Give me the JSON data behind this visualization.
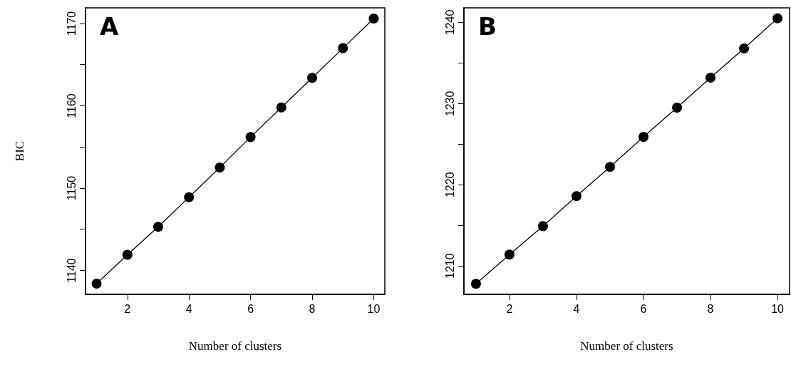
{
  "chart_data": [
    {
      "type": "line",
      "xlabel": "Number of clusters",
      "ylabel": "BIC",
      "annotations": [
        "A"
      ],
      "x": [
        1,
        2,
        3,
        4,
        5,
        6,
        7,
        8,
        9,
        10
      ],
      "series": [
        {
          "color": "#000000",
          "values": [
            1138.4,
            1141.9,
            1145.3,
            1148.9,
            1152.5,
            1156.2,
            1159.8,
            1163.4,
            1167.0,
            1170.6
          ]
        }
      ],
      "xlim": [
        0.64,
        10.36
      ],
      "xticks": [
        2,
        4,
        6,
        8,
        10
      ],
      "ylim": [
        1137.1,
        1171.9
      ],
      "yticks": [
        1140,
        {
          "value": 1145,
          "label": null
        },
        1150,
        {
          "value": 1155,
          "label": null
        },
        1160,
        {
          "value": 1165,
          "label": null
        },
        1170
      ],
      "marker": "circle",
      "line_style": "solid"
    },
    {
      "type": "line",
      "xlabel": "Number of clusters",
      "annotations": [
        "B"
      ],
      "x": [
        1,
        2,
        3,
        4,
        5,
        6,
        7,
        8,
        9,
        10
      ],
      "series": [
        {
          "color": "#000000",
          "values": [
            1207.8,
            1211.4,
            1214.9,
            1218.6,
            1222.2,
            1225.9,
            1229.5,
            1233.2,
            1236.8,
            1240.5
          ]
        }
      ],
      "xlim": [
        0.64,
        10.36
      ],
      "xticks": [
        2,
        4,
        6,
        8,
        10
      ],
      "ylim": [
        1206.5,
        1241.8
      ],
      "yticks": [
        1210,
        {
          "value": 1215,
          "label": null
        },
        1220,
        {
          "value": 1225,
          "label": null
        },
        1230,
        {
          "value": 1235,
          "label": null
        },
        1240
      ],
      "marker": "circle",
      "line_style": "solid"
    }
  ]
}
